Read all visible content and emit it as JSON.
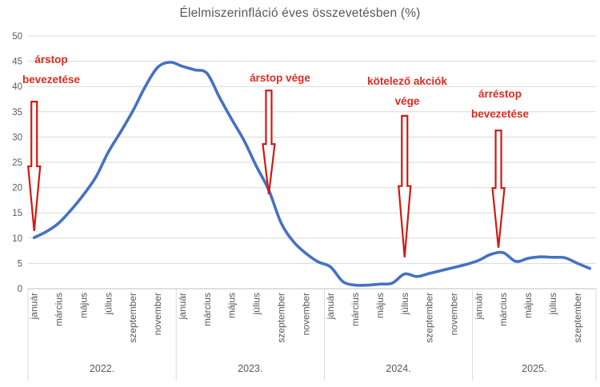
{
  "chart_data": {
    "type": "line",
    "title": "Élelmiszerinfláció éves összevetésben (%)",
    "xlabel": "",
    "ylabel": "",
    "ylim": [
      0,
      50
    ],
    "yticks": [
      0,
      5,
      10,
      15,
      20,
      25,
      30,
      35,
      40,
      45,
      50
    ],
    "grid": "horizontal",
    "legend": "none",
    "x_groups": [
      {
        "year": "2022.",
        "months_in_group": 12,
        "tick_labels": [
          "január",
          "március",
          "május",
          "július",
          "szeptember",
          "november"
        ]
      },
      {
        "year": "2023.",
        "months_in_group": 12,
        "tick_labels": [
          "január",
          "március",
          "május",
          "július",
          "szeptember",
          "november"
        ]
      },
      {
        "year": "2024.",
        "months_in_group": 12,
        "tick_labels": [
          "január",
          "március",
          "május",
          "július",
          "szeptember",
          "november"
        ]
      },
      {
        "year": "2025.",
        "months_in_group": 10,
        "tick_labels": [
          "január",
          "március",
          "május",
          "július",
          "szeptember"
        ]
      }
    ],
    "series": [
      {
        "name": "élelmiszerinfláció",
        "color": "#4472C4",
        "values": [
          10.1,
          11.3,
          13.0,
          15.6,
          18.6,
          22.1,
          27.0,
          31.0,
          35.2,
          40.0,
          43.8,
          44.8,
          44.0,
          43.3,
          42.6,
          37.9,
          33.5,
          29.3,
          24.2,
          19.5,
          13.0,
          9.3,
          7.0,
          5.3,
          4.3,
          1.4,
          0.7,
          0.7,
          0.9,
          1.1,
          2.9,
          2.4,
          3.0,
          3.6,
          4.2,
          4.8,
          5.6,
          6.8,
          7.1,
          5.4,
          6.0,
          6.3,
          6.2,
          6.1,
          5.0,
          4.0
        ]
      }
    ],
    "annotations": [
      {
        "label": "árstop bevezetése",
        "month_index": 0,
        "arrow_top_value": 37.0,
        "arrow_notch_value": 24.2,
        "arrow_tip_value": 11.4
      },
      {
        "label": "árstop vége",
        "month_index": 19,
        "arrow_top_value": 39.2,
        "arrow_notch_value": 28.6,
        "arrow_tip_value": 18.7
      },
      {
        "label": "kötelező akciók vége",
        "month_index": 30,
        "arrow_top_value": 34.2,
        "arrow_notch_value": 20.3,
        "arrow_tip_value": 6.2
      },
      {
        "label": "árréstop bevezetése",
        "month_index": 37.6,
        "arrow_top_value": 31.3,
        "arrow_notch_value": 19.9,
        "arrow_tip_value": 8.1
      }
    ],
    "colors": {
      "line": "#4472C4",
      "gridline": "#D9D9D9",
      "axis_line": "#BFBFBF",
      "axis_text": "#595959",
      "annotation_text": "#e0291e",
      "annotation_arrow_stroke": "#d01910",
      "annotation_arrow_fill": "#ffffff",
      "background": "#ffffff"
    }
  }
}
